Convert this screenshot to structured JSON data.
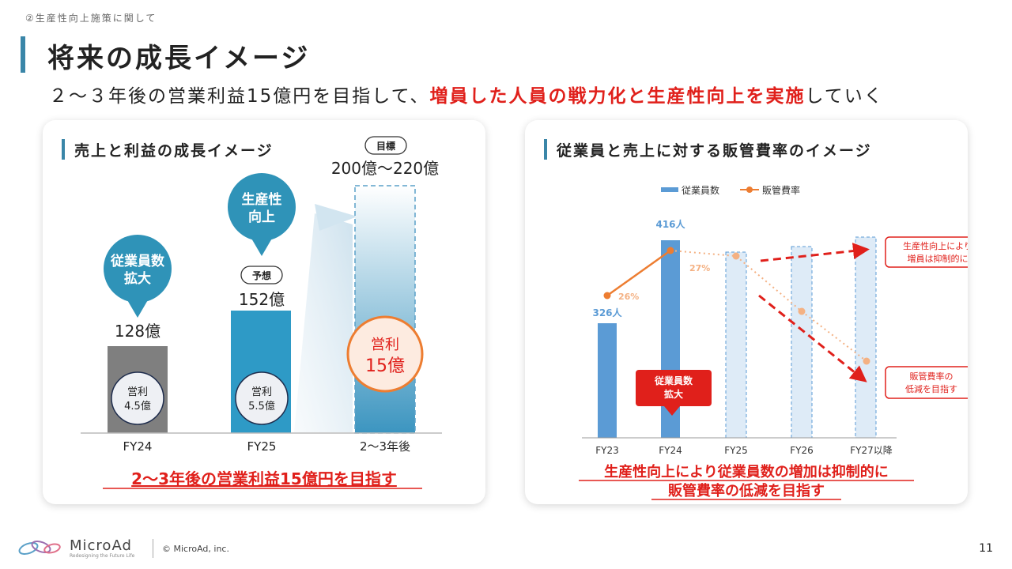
{
  "breadcrumb": "②生産性向上施策に関して",
  "page_title": "将来の成長イメージ",
  "subtitle": {
    "normal_1": "２～３年後の営業利益15億円を目指して、",
    "highlight": "増員した人員の戦力化と生産性向上を実施",
    "normal_2": "していく"
  },
  "left_panel": {
    "title": "売上と利益の成長イメージ",
    "bubble_1": [
      "従業員数",
      "拡大"
    ],
    "bubble_2": [
      "生産性",
      "向上"
    ],
    "forecast_tag": "予想",
    "target_tag": "目標",
    "fy24_value": "128億",
    "fy25_value": "152億",
    "target_value": "200億～220億",
    "fy24_profit": [
      "営利",
      "4.5億"
    ],
    "fy25_profit": [
      "営利",
      "5.5億"
    ],
    "target_profit": [
      "営利",
      "15億"
    ],
    "conclusion": "2～3年後の営業利益15億円を目指す"
  },
  "right_panel": {
    "title": "従業員と売上に対する販管費率のイメージ",
    "legend_bar": "従業員数",
    "legend_line": "販管費率",
    "label_fy23": "326人",
    "label_fy24": "416人",
    "rate_fy23": "26%",
    "rate_fy24": "27%",
    "callout_expand": [
      "従業員数",
      "拡大"
    ],
    "callout_top": [
      "生産性向上により",
      "増員は抑制的に"
    ],
    "callout_bottom": [
      "販管費率の",
      "低減を目指す"
    ],
    "conclusion": [
      "生産性向上により従業員数の増加は抑制的に",
      "販管費率の低減を目指す"
    ]
  },
  "chart_data": [
    {
      "type": "bar",
      "title": "売上と利益の成長イメージ",
      "categories": [
        "FY24",
        "FY25",
        "2～3年後"
      ],
      "series": [
        {
          "values": [
            128,
            152,
            210
          ],
          "unit": "億"
        }
      ],
      "operating_profit": [
        4.5,
        5.5,
        15
      ],
      "target_range": [
        200,
        220
      ],
      "annotations": [
        "予想",
        "目標"
      ],
      "ylim": [
        0,
        220
      ],
      "colors": [
        "#7f7f7f",
        "#2e9ac6",
        "#cfe6f1"
      ]
    },
    {
      "type": "bar",
      "title": "従業員と売上に対する販管費率のイメージ",
      "categories": [
        "FY23",
        "FY24",
        "FY25",
        "FY26",
        "FY27以降"
      ],
      "series": [
        {
          "name": "従業員数",
          "values": [
            326,
            416,
            416,
            416,
            416
          ],
          "unit": "人",
          "type": "bar"
        },
        {
          "name": "販管費率",
          "values": [
            26,
            27,
            26.5,
            24,
            21
          ],
          "unit": "%",
          "type": "line"
        }
      ],
      "colors": {
        "bar": "#5b9bd5",
        "line": "#ed7d31",
        "projected_fill": "#deebf7",
        "arrow": "#e0201b"
      }
    }
  ],
  "footer": {
    "brand": "MicroAd",
    "tagline": "Redesigning the Future Life",
    "copyright": "© MicroAd, inc.",
    "page_number": "11"
  }
}
